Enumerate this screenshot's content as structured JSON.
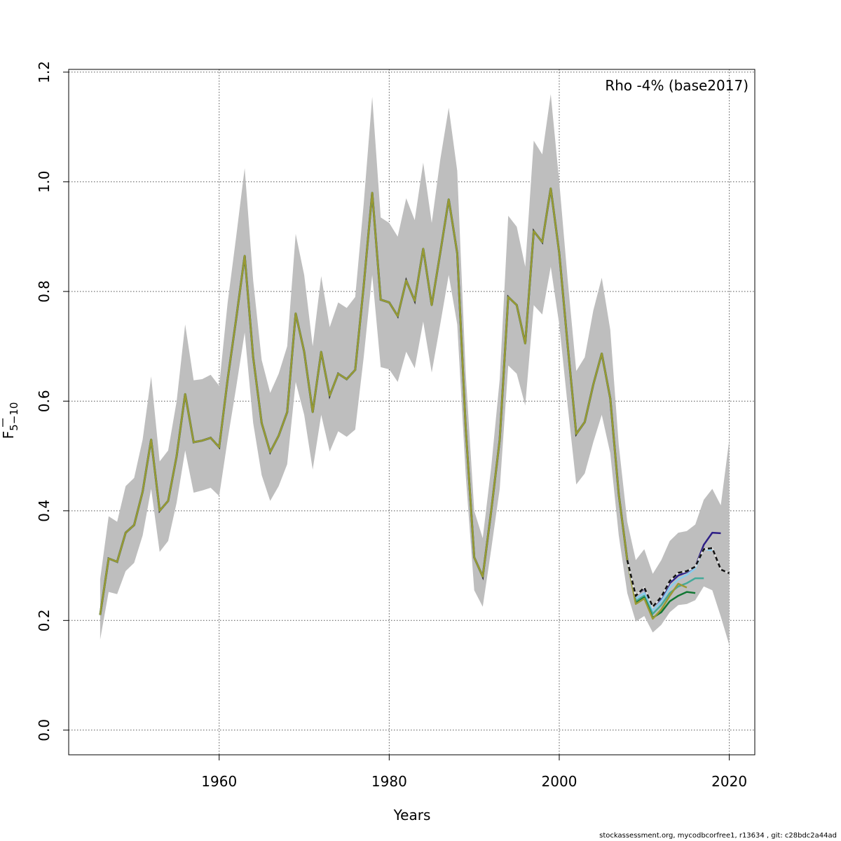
{
  "chart_data": {
    "type": "line",
    "title": "",
    "xlabel": "Years",
    "ylabel": "F̄5-10",
    "ylabel_main": "F",
    "ylabel_sub": "5−10",
    "xlim": [
      1942.3,
      2023.0
    ],
    "ylim": [
      -0.045,
      1.205
    ],
    "xticks": [
      1960,
      1980,
      2000,
      2020
    ],
    "xtick_labels": [
      "1960",
      "1980",
      "2000",
      "2020"
    ],
    "yticks": [
      0.0,
      0.2,
      0.4,
      0.6,
      0.8,
      1.0,
      1.2
    ],
    "ytick_labels": [
      "0.0",
      "0.2",
      "0.4",
      "0.6",
      "0.8",
      "1.0",
      "1.2"
    ],
    "grid": true,
    "legend_text": "Rho -4% (base2017)",
    "legend_placement": "top-right",
    "years": [
      1946,
      1947,
      1948,
      1949,
      1950,
      1951,
      1952,
      1953,
      1954,
      1955,
      1956,
      1957,
      1958,
      1959,
      1960,
      1961,
      1962,
      1963,
      1964,
      1965,
      1966,
      1967,
      1968,
      1969,
      1970,
      1971,
      1972,
      1973,
      1974,
      1975,
      1976,
      1977,
      1978,
      1979,
      1980,
      1981,
      1982,
      1983,
      1984,
      1985,
      1986,
      1987,
      1988,
      1989,
      1990,
      1991,
      1992,
      1993,
      1994,
      1995,
      1996,
      1997,
      1998,
      1999,
      2000,
      2001,
      2002,
      2003,
      2004,
      2005,
      2006,
      2007,
      2008,
      2009,
      2010,
      2011,
      2012,
      2013,
      2014,
      2015,
      2016,
      2017,
      2018,
      2019,
      2020
    ],
    "base": [
      0.21,
      0.313,
      0.307,
      0.36,
      0.374,
      0.435,
      0.53,
      0.4,
      0.418,
      0.5,
      0.613,
      0.525,
      0.528,
      0.533,
      0.516,
      0.64,
      0.75,
      0.865,
      0.68,
      0.56,
      0.507,
      0.537,
      0.58,
      0.76,
      0.69,
      0.58,
      0.69,
      0.61,
      0.65,
      0.64,
      0.657,
      0.81,
      0.98,
      0.785,
      0.78,
      0.755,
      0.82,
      0.783,
      0.878,
      0.775,
      0.87,
      0.968,
      0.87,
      0.55,
      0.315,
      0.28,
      0.4,
      0.53,
      0.79,
      0.775,
      0.705,
      0.91,
      0.89,
      0.988,
      0.87,
      0.7,
      0.54,
      0.562,
      0.63,
      0.687,
      0.605,
      0.43,
      0.31,
      0.245,
      0.26,
      0.225,
      0.243,
      0.272,
      0.287,
      0.29,
      0.298,
      0.33,
      0.332,
      0.293,
      0.286
    ],
    "ci_high": [
      0.275,
      0.39,
      0.38,
      0.445,
      0.46,
      0.53,
      0.645,
      0.49,
      0.51,
      0.6,
      0.74,
      0.638,
      0.64,
      0.648,
      0.628,
      0.78,
      0.9,
      1.025,
      0.82,
      0.675,
      0.615,
      0.65,
      0.7,
      0.905,
      0.83,
      0.7,
      0.828,
      0.735,
      0.78,
      0.77,
      0.79,
      0.96,
      1.155,
      0.935,
      0.925,
      0.9,
      0.97,
      0.93,
      1.035,
      0.925,
      1.04,
      1.135,
      1.02,
      0.65,
      0.4,
      0.35,
      0.48,
      0.64,
      0.938,
      0.918,
      0.845,
      1.075,
      1.05,
      1.16,
      1.0,
      0.82,
      0.655,
      0.68,
      0.765,
      0.825,
      0.73,
      0.52,
      0.38,
      0.31,
      0.33,
      0.285,
      0.31,
      0.345,
      0.36,
      0.363,
      0.375,
      0.42,
      0.44,
      0.41,
      0.53
    ],
    "ci_low": [
      0.165,
      0.252,
      0.248,
      0.29,
      0.305,
      0.355,
      0.44,
      0.325,
      0.345,
      0.415,
      0.51,
      0.433,
      0.437,
      0.442,
      0.427,
      0.53,
      0.625,
      0.725,
      0.56,
      0.465,
      0.418,
      0.445,
      0.485,
      0.635,
      0.575,
      0.475,
      0.575,
      0.508,
      0.545,
      0.535,
      0.548,
      0.68,
      0.83,
      0.662,
      0.658,
      0.635,
      0.69,
      0.66,
      0.745,
      0.652,
      0.74,
      0.83,
      0.74,
      0.465,
      0.255,
      0.225,
      0.33,
      0.44,
      0.665,
      0.65,
      0.592,
      0.775,
      0.758,
      0.845,
      0.74,
      0.59,
      0.448,
      0.468,
      0.525,
      0.575,
      0.505,
      0.355,
      0.25,
      0.198,
      0.208,
      0.178,
      0.192,
      0.215,
      0.228,
      0.23,
      0.237,
      0.262,
      0.255,
      0.207,
      0.155
    ],
    "peels_shared_until": 2008,
    "peels": [
      {
        "name": "peel-2019",
        "color": "#2e1f86",
        "tail_years": [
          2009,
          2010,
          2011,
          2012,
          2013,
          2014,
          2015,
          2016,
          2017,
          2018,
          2019
        ],
        "tail_values": [
          0.245,
          0.258,
          0.225,
          0.24,
          0.268,
          0.282,
          0.288,
          0.298,
          0.338,
          0.36,
          0.359
        ]
      },
      {
        "name": "peel-2018",
        "color": "#88ccee",
        "tail_years": [
          2009,
          2010,
          2011,
          2012,
          2013,
          2014,
          2015,
          2016,
          2017,
          2018
        ],
        "tail_values": [
          0.24,
          0.25,
          0.218,
          0.235,
          0.26,
          0.275,
          0.283,
          0.295,
          0.33,
          0.328
        ]
      },
      {
        "name": "peel-2017",
        "color": "#44aa99",
        "tail_years": [
          2009,
          2010,
          2011,
          2012,
          2013,
          2014,
          2015,
          2016,
          2017
        ],
        "tail_values": [
          0.235,
          0.245,
          0.212,
          0.228,
          0.25,
          0.262,
          0.268,
          0.277,
          0.277
        ]
      },
      {
        "name": "peel-2016",
        "color": "#117733",
        "tail_years": [
          2009,
          2010,
          2011,
          2012,
          2013,
          2014,
          2015,
          2016
        ],
        "tail_values": [
          0.232,
          0.242,
          0.205,
          0.215,
          0.235,
          0.245,
          0.252,
          0.25
        ]
      },
      {
        "name": "peel-2015",
        "color": "#999933",
        "tail_years": [
          2009,
          2010,
          2011,
          2012,
          2013,
          2014,
          2015
        ],
        "tail_values": [
          0.23,
          0.24,
          0.203,
          0.22,
          0.245,
          0.267,
          0.26
        ]
      }
    ],
    "base_color": "#000000",
    "ci_color": "#bebebe"
  },
  "footer": "stockassessment.org, mycodbcorfree1, r13634 , git: c28bdc2a44ad"
}
